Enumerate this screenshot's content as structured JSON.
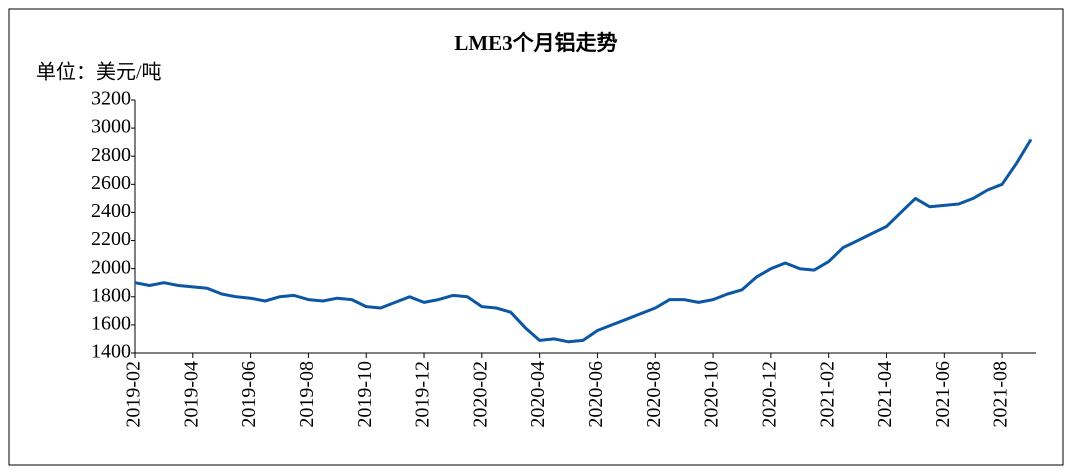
{
  "chart_data": {
    "type": "line",
    "title": "LME3个月铝走势",
    "y_label": "单位：美元/吨",
    "categories": [
      "2019-02",
      null,
      null,
      null,
      "2019-04",
      null,
      null,
      null,
      "2019-06",
      null,
      null,
      null,
      "2019-08",
      null,
      null,
      null,
      "2019-10",
      null,
      null,
      null,
      "2019-12",
      null,
      null,
      null,
      "2020-02",
      null,
      null,
      null,
      "2020-04",
      null,
      null,
      null,
      "2020-06",
      null,
      null,
      null,
      "2020-08",
      null,
      null,
      null,
      "2020-10",
      null,
      null,
      null,
      "2020-12",
      null,
      null,
      null,
      "2021-02",
      null,
      null,
      null,
      "2021-04",
      null,
      null,
      null,
      "2021-06",
      null,
      null,
      null,
      "2021-08",
      null,
      null
    ],
    "series": [
      {
        "name": "LME3个月铝",
        "color": "#0b57a4",
        "values": [
          1900,
          1880,
          1900,
          1880,
          1870,
          1860,
          1820,
          1800,
          1790,
          1770,
          1800,
          1810,
          1780,
          1770,
          1790,
          1780,
          1730,
          1720,
          1760,
          1800,
          1760,
          1780,
          1810,
          1800,
          1730,
          1720,
          1690,
          1580,
          1490,
          1500,
          1480,
          1490,
          1560,
          1600,
          1640,
          1680,
          1720,
          1780,
          1780,
          1760,
          1780,
          1820,
          1850,
          1940,
          2000,
          2040,
          2000,
          1990,
          2050,
          2150,
          2200,
          2250,
          2300,
          2400,
          2500,
          2440,
          2450,
          2460,
          2500,
          2560,
          2600,
          2750,
          2920
        ]
      }
    ],
    "ylim": [
      1400,
      3200
    ],
    "yticks": [
      1400,
      1600,
      1800,
      2000,
      2200,
      2400,
      2600,
      2800,
      3000,
      3200
    ]
  }
}
